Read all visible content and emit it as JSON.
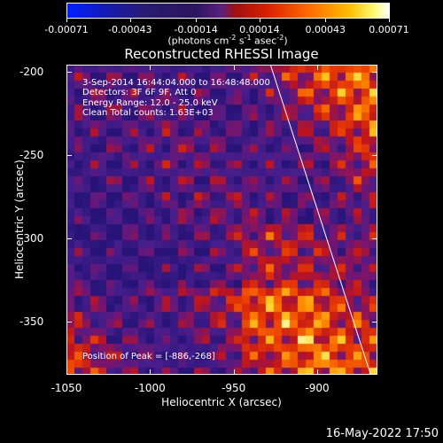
{
  "colorbar": {
    "tick_labels": [
      "-0.00071",
      "-0.00043",
      "-0.00014",
      "0.00014",
      "0.00043",
      "0.00071"
    ],
    "tick_values": [
      -0.00071,
      -0.00043,
      -0.00014,
      0.00014,
      0.00043,
      0.00071
    ],
    "range": [
      -0.00071,
      0.00071
    ],
    "units_base": "(photons cm",
    "units_exp1": "-2",
    "units_mid1": " s",
    "units_exp2": "-1",
    "units_mid2": " asec",
    "units_exp3": "-2",
    "units_end": ")"
  },
  "title": "Reconstructed RHESSI Image",
  "info": {
    "time_range": "3-Sep-2014 16:44:04.000 to 16:48:48.000",
    "detectors": "Detectors: 3F 6F 9F, Att 0",
    "energy": "Energy Range: 12.0 - 25.0 keV",
    "clean": "Clean     Total counts: 1.63E+03"
  },
  "peak": "Position of Peak = [-886,-268]",
  "x_axis": {
    "label": "Heliocentric X (arcsec)",
    "ticks": [
      "-1050",
      "-1000",
      "-950",
      "-900"
    ],
    "tick_values": [
      -1050,
      -1000,
      -950,
      -900
    ],
    "range": [
      -1050,
      -864
    ]
  },
  "y_axis": {
    "label": "Heliocentric Y (arcsec)",
    "ticks": [
      "-200",
      "-250",
      "-300",
      "-350"
    ],
    "tick_values": [
      -200,
      -250,
      -300,
      -350
    ],
    "range": [
      -382,
      -196
    ]
  },
  "limb_line": {
    "x1": -928,
    "y1": -196,
    "x2": -868,
    "y2": -382
  },
  "timestamp": "16-May-2022 17:50"
}
